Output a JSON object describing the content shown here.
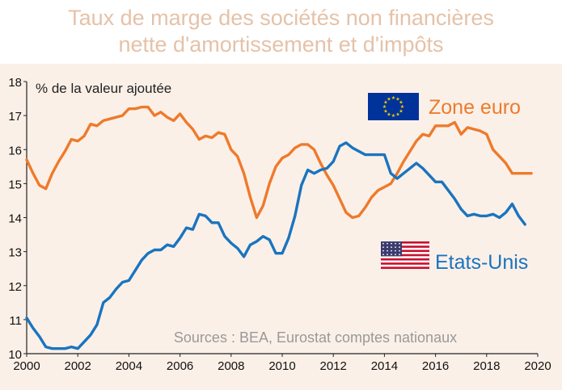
{
  "title_lines": [
    "Taux de marge des sociétés non financières",
    "nette d'amortissement et d'impôts"
  ],
  "colors": {
    "title": "#e5c2a8",
    "panel": "#fbf0e8",
    "zone_euro": "#ee7a2b",
    "us": "#1a74bf",
    "source": "#999999"
  },
  "chart_data": {
    "type": "line",
    "title": "Taux de marge des sociétés non financières nette d'amortissement et d'impôts",
    "ylabel": "% de la valeur ajoutée",
    "xlim": [
      2000,
      2020
    ],
    "ylim": [
      10,
      18
    ],
    "x_ticks": [
      2000,
      2002,
      2004,
      2006,
      2008,
      2010,
      2012,
      2014,
      2016,
      2018,
      2020
    ],
    "y_ticks": [
      10,
      11,
      12,
      13,
      14,
      15,
      16,
      17,
      18
    ],
    "source": "Sources : BEA, Eurostat comptes nationaux",
    "series": [
      {
        "name": "Zone euro",
        "flag": "eu",
        "color": "#ee7a2b",
        "x": [
          2000,
          2000.25,
          2000.5,
          2000.75,
          2001,
          2001.25,
          2001.5,
          2001.75,
          2002,
          2002.25,
          2002.5,
          2002.75,
          2003,
          2003.25,
          2003.5,
          2003.75,
          2004,
          2004.25,
          2004.5,
          2004.75,
          2005,
          2005.25,
          2005.5,
          2005.75,
          2006,
          2006.25,
          2006.5,
          2006.75,
          2007,
          2007.25,
          2007.5,
          2007.75,
          2008,
          2008.25,
          2008.5,
          2008.75,
          2009,
          2009.25,
          2009.5,
          2009.75,
          2010,
          2010.25,
          2010.5,
          2010.75,
          2011,
          2011.25,
          2011.5,
          2011.75,
          2012,
          2012.25,
          2012.5,
          2012.75,
          2013,
          2013.25,
          2013.5,
          2013.75,
          2014,
          2014.25,
          2014.5,
          2014.75,
          2015,
          2015.25,
          2015.5,
          2015.75,
          2016,
          2016.25,
          2016.5,
          2016.75,
          2017,
          2017.25,
          2017.5,
          2017.75,
          2018,
          2018.25,
          2018.5,
          2018.75,
          2019,
          2019.25,
          2019.5,
          2019.75
        ],
        "values": [
          15.7,
          15.3,
          14.95,
          14.85,
          15.3,
          15.65,
          15.95,
          16.3,
          16.25,
          16.4,
          16.75,
          16.7,
          16.85,
          16.9,
          16.95,
          17.0,
          17.2,
          17.2,
          17.25,
          17.25,
          17.0,
          17.1,
          16.95,
          16.85,
          17.05,
          16.8,
          16.6,
          16.3,
          16.4,
          16.35,
          16.5,
          16.45,
          16.0,
          15.8,
          15.3,
          14.6,
          14.0,
          14.35,
          15.0,
          15.5,
          15.75,
          15.85,
          16.05,
          16.15,
          16.15,
          16.0,
          15.6,
          15.25,
          14.95,
          14.55,
          14.15,
          14.0,
          14.05,
          14.3,
          14.6,
          14.8,
          14.9,
          15.0,
          15.3,
          15.65,
          15.95,
          16.25,
          16.45,
          16.4,
          16.7,
          16.7,
          16.7,
          16.8,
          16.45,
          16.65,
          16.6,
          16.55,
          16.45,
          16.0,
          15.8,
          15.6,
          15.3,
          15.3,
          15.3,
          15.3
        ]
      },
      {
        "name": "Etats-Unis",
        "flag": "us",
        "color": "#1a74bf",
        "x": [
          2000,
          2000.25,
          2000.5,
          2000.75,
          2001,
          2001.25,
          2001.5,
          2001.75,
          2002,
          2002.25,
          2002.5,
          2002.75,
          2003,
          2003.25,
          2003.5,
          2003.75,
          2004,
          2004.25,
          2004.5,
          2004.75,
          2005,
          2005.25,
          2005.5,
          2005.75,
          2006,
          2006.25,
          2006.5,
          2006.75,
          2007,
          2007.25,
          2007.5,
          2007.75,
          2008,
          2008.25,
          2008.5,
          2008.75,
          2009,
          2009.25,
          2009.5,
          2009.75,
          2010,
          2010.25,
          2010.5,
          2010.75,
          2011,
          2011.25,
          2011.5,
          2011.75,
          2012,
          2012.25,
          2012.5,
          2012.75,
          2013,
          2013.25,
          2013.5,
          2013.75,
          2014,
          2014.25,
          2014.5,
          2014.75,
          2015,
          2015.25,
          2015.5,
          2015.75,
          2016,
          2016.25,
          2016.5,
          2016.75,
          2017,
          2017.25,
          2017.5,
          2017.75,
          2018,
          2018.25,
          2018.5,
          2018.75,
          2019,
          2019.25,
          2019.5
        ],
        "values": [
          11.05,
          10.75,
          10.5,
          10.2,
          10.15,
          10.15,
          10.15,
          10.2,
          10.15,
          10.35,
          10.55,
          10.85,
          11.5,
          11.65,
          11.9,
          12.1,
          12.15,
          12.45,
          12.75,
          12.95,
          13.05,
          13.05,
          13.2,
          13.15,
          13.4,
          13.7,
          13.65,
          14.1,
          14.05,
          13.85,
          13.85,
          13.45,
          13.25,
          13.1,
          12.85,
          13.2,
          13.3,
          13.45,
          13.35,
          12.95,
          12.95,
          13.4,
          14.05,
          14.95,
          15.4,
          15.3,
          15.4,
          15.45,
          15.65,
          16.1,
          16.2,
          16.05,
          15.95,
          15.85,
          15.85,
          15.85,
          15.85,
          15.3,
          15.15,
          15.3,
          15.45,
          15.6,
          15.45,
          15.25,
          15.05,
          15.05,
          14.8,
          14.55,
          14.25,
          14.05,
          14.1,
          14.05,
          14.05,
          14.1,
          14.0,
          14.15,
          14.4,
          14.05,
          13.8
        ]
      }
    ]
  }
}
